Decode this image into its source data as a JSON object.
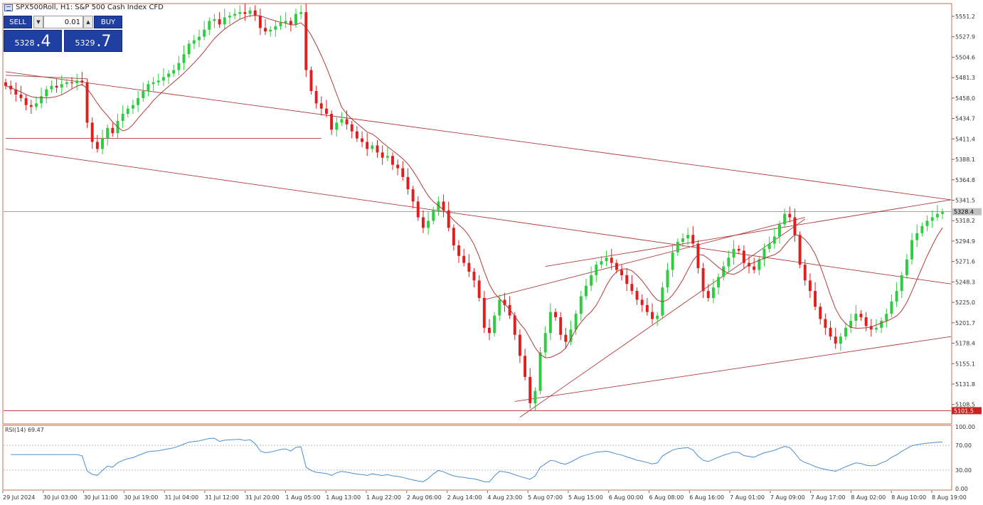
{
  "window": {
    "title": "SPX500Roll, H1:  S&P 500 Cash Index CFD"
  },
  "trade_panel": {
    "sell_label": "SELL",
    "buy_label": "BUY",
    "lot_value": "0.01",
    "bid_main": "5328",
    "bid_big": ".4",
    "ask_main": "5329",
    "ask_big": ".7"
  },
  "colors": {
    "bull": "#2ecc40",
    "bear": "#e01e1e",
    "ma": "#b23a3a",
    "trendline": "#b23a3a",
    "rsi": "#4a8fd0",
    "grid_border": "#c07050",
    "price_label_bg": "#c0c0c0",
    "support_label_bg": "#cc2222"
  },
  "chart_data": {
    "type": "candlestick",
    "symbol": "SPX500Roll",
    "timeframe": "H1",
    "y_ticks": [
      5551.2,
      5527.9,
      5504.6,
      5481.3,
      5458.0,
      5434.7,
      5411.4,
      5388.1,
      5364.8,
      5341.5,
      5318.2,
      5294.9,
      5271.6,
      5248.3,
      5225.0,
      5201.7,
      5178.4,
      5155.1,
      5131.8,
      5108.5
    ],
    "ylim": [
      5088.0,
      5565.0
    ],
    "x_labels": [
      "29 Jul 2024",
      "30 Jul 03:00",
      "30 Jul 11:00",
      "30 Jul 19:00",
      "31 Jul 04:00",
      "31 Jul 12:00",
      "31 Jul 20:00",
      "1 Aug 05:00",
      "1 Aug 13:00",
      "1 Aug 22:00",
      "2 Aug 06:00",
      "2 Aug 14:00",
      "4 Aug 23:00",
      "5 Aug 07:00",
      "5 Aug 15:00",
      "6 Aug 00:00",
      "6 Aug 08:00",
      "6 Aug 16:00",
      "7 Aug 01:00",
      "7 Aug 09:00",
      "7 Aug 17:00",
      "8 Aug 02:00",
      "8 Aug 10:00",
      "8 Aug 19:00"
    ],
    "current_price": 5328.4,
    "current_price_label": "5328.4",
    "support_level": 5101.5,
    "support_label": "5101.5",
    "closes": [
      5472,
      5468,
      5462,
      5458,
      5450,
      5448,
      5452,
      5460,
      5468,
      5472,
      5470,
      5474,
      5476,
      5475,
      5478,
      5476,
      5430,
      5408,
      5400,
      5412,
      5424,
      5418,
      5432,
      5440,
      5446,
      5450,
      5458,
      5466,
      5474,
      5476,
      5478,
      5482,
      5486,
      5490,
      5498,
      5508,
      5520,
      5524,
      5528,
      5536,
      5546,
      5548,
      5542,
      5550,
      5552,
      5554,
      5556,
      5554,
      5558,
      5552,
      5538,
      5534,
      5536,
      5540,
      5544,
      5546,
      5542,
      5554,
      5556,
      5490,
      5466,
      5452,
      5446,
      5440,
      5422,
      5430,
      5434,
      5428,
      5420,
      5412,
      5408,
      5400,
      5404,
      5396,
      5390,
      5392,
      5382,
      5378,
      5368,
      5354,
      5340,
      5322,
      5310,
      5318,
      5330,
      5340,
      5330,
      5310,
      5290,
      5278,
      5270,
      5260,
      5250,
      5230,
      5196,
      5190,
      5210,
      5228,
      5222,
      5210,
      5188,
      5164,
      5140,
      5110,
      5124,
      5168,
      5190,
      5214,
      5208,
      5188,
      5180,
      5194,
      5212,
      5232,
      5244,
      5256,
      5268,
      5272,
      5276,
      5270,
      5262,
      5256,
      5246,
      5238,
      5228,
      5222,
      5214,
      5206,
      5210,
      5242,
      5262,
      5282,
      5294,
      5298,
      5302,
      5292,
      5264,
      5238,
      5230,
      5242,
      5254,
      5266,
      5276,
      5286,
      5284,
      5270,
      5266,
      5262,
      5274,
      5286,
      5292,
      5300,
      5314,
      5326,
      5322,
      5302,
      5268,
      5250,
      5238,
      5220,
      5206,
      5196,
      5186,
      5178,
      5186,
      5196,
      5204,
      5212,
      5208,
      5198,
      5194,
      5196,
      5204,
      5212,
      5226,
      5238,
      5256,
      5274,
      5296,
      5304,
      5312,
      5318,
      5322,
      5326,
      5328
    ],
    "rsi": {
      "label": "RSI(14) 69.47",
      "levels": [
        70,
        30
      ],
      "y_ticks": [
        "100.00",
        "70.00",
        "30.00",
        "0.00"
      ],
      "ylim": [
        0,
        100
      ]
    }
  }
}
